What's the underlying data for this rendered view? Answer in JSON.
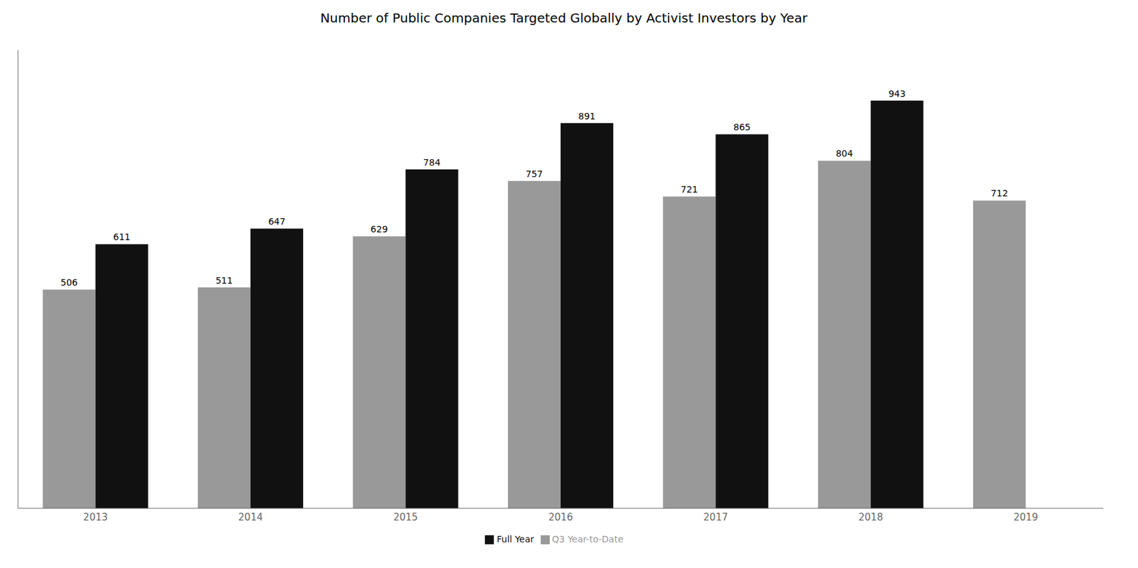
{
  "chart_data": {
    "type": "bar",
    "title": "Number of Public Companies Targeted Globally by Activist Investors by Year",
    "categories": [
      "2013",
      "2014",
      "2015",
      "2016",
      "2017",
      "2018",
      "2019"
    ],
    "series": [
      {
        "name": "Q3 Year-to-Date",
        "color": "#999999",
        "values": [
          506,
          511,
          629,
          757,
          721,
          804,
          712
        ]
      },
      {
        "name": "Full Year",
        "color": "#111111",
        "values": [
          611,
          647,
          784,
          891,
          865,
          943,
          null
        ]
      }
    ],
    "ylim": [
      0,
      1060
    ],
    "grid": false,
    "legend": "bottom",
    "data_labels": true,
    "tick_labels": "x"
  }
}
